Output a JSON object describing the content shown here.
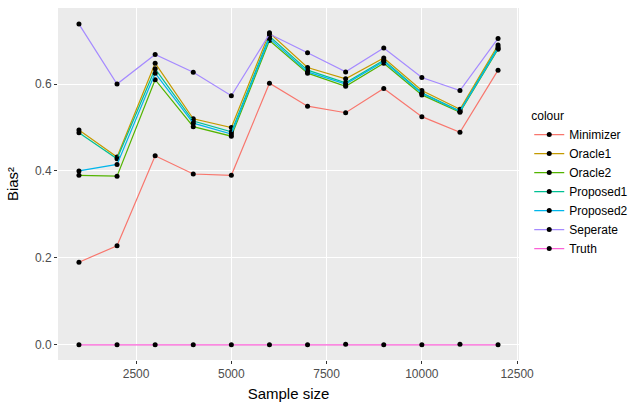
{
  "chart_data": {
    "type": "line",
    "x_label": "Sample size",
    "y_label": "Bias²",
    "legend_title": "colour",
    "x": [
      1000,
      2000,
      3000,
      4000,
      5000,
      6000,
      7000,
      8000,
      9000,
      10000,
      11000,
      12000
    ],
    "series": [
      {
        "name": "Minimizer",
        "color": "#F8766D",
        "values": [
          0.19,
          0.228,
          0.435,
          0.393,
          0.39,
          0.602,
          0.549,
          0.534,
          0.59,
          0.525,
          0.489,
          0.632
        ]
      },
      {
        "name": "Oracle1",
        "color": "#C49A00",
        "values": [
          0.494,
          0.432,
          0.648,
          0.52,
          0.5,
          0.718,
          0.638,
          0.612,
          0.66,
          0.585,
          0.542,
          0.69
        ]
      },
      {
        "name": "Oracle2",
        "color": "#53B400",
        "values": [
          0.39,
          0.388,
          0.61,
          0.502,
          0.48,
          0.7,
          0.625,
          0.595,
          0.648,
          0.575,
          0.535,
          0.68
        ]
      },
      {
        "name": "Proposed1",
        "color": "#00C094",
        "values": [
          0.488,
          0.428,
          0.635,
          0.515,
          0.49,
          0.71,
          0.632,
          0.603,
          0.655,
          0.58,
          0.538,
          0.685
        ]
      },
      {
        "name": "Proposed2",
        "color": "#00B6EB",
        "values": [
          0.4,
          0.415,
          0.625,
          0.51,
          0.485,
          0.705,
          0.628,
          0.6,
          0.652,
          0.578,
          0.537,
          0.682
        ]
      },
      {
        "name": "Seperate",
        "color": "#A58AFF",
        "values": [
          0.738,
          0.6,
          0.668,
          0.627,
          0.573,
          0.715,
          0.672,
          0.628,
          0.683,
          0.615,
          0.585,
          0.705
        ]
      },
      {
        "name": "Truth",
        "color": "#FB61D7",
        "values": [
          0,
          0,
          0,
          0,
          0,
          0,
          0,
          0.001,
          0,
          0,
          0.001,
          0
        ]
      }
    ],
    "xlim": [
      450,
      12550
    ],
    "xticks": [
      2500,
      5000,
      7500,
      10000,
      12500
    ],
    "ylim": [
      -0.035,
      0.775
    ],
    "yticks": [
      {
        "value": 0,
        "label": "0.0"
      },
      0.2,
      0.4,
      0.6
    ],
    "grid": true,
    "marker": "circle",
    "legend": "right"
  }
}
